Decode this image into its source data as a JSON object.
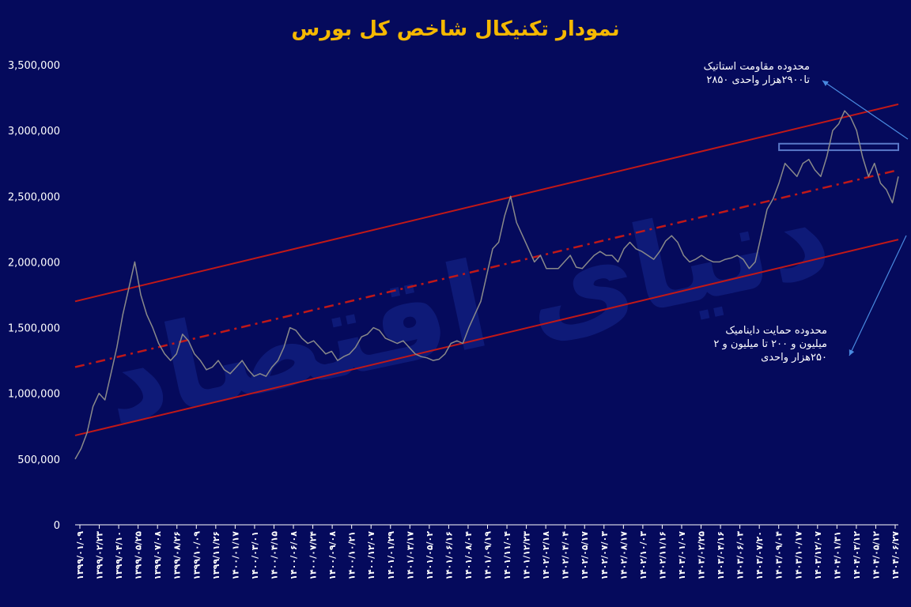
{
  "title": "نمودار تکنیکال شاخص کل بورس",
  "watermark": "دنیای اقتصاد",
  "annotations": {
    "resistance_line1": "محدوده مقاومت استاتیک",
    "resistance_line2": "تا۲۹۰۰هزار واحدی ۲۸۵۰",
    "support_line1": "محدوده حمایت داینامیک",
    "support_line2": "میلیون و ۲۰۰ تا میلیون و ۲",
    "support_line3": "۲۵۰هزار واحدی"
  },
  "colors": {
    "background": "#050a5c",
    "series": "#8a8a8a",
    "channel": "#c01818",
    "title": "#f5b800",
    "annotation_arrow": "#4a8ae0",
    "resistance_box": "#5a78c8"
  },
  "chart_data": {
    "type": "line",
    "title": "نمودار تکنیکال شاخص کل بورس",
    "ylim": [
      0,
      3500000
    ],
    "yticks": [
      0,
      500000,
      1000000,
      1500000,
      2000000,
      2500000,
      3000000,
      3500000
    ],
    "ytick_labels": [
      "0",
      "500,000",
      "1,000,000",
      "1,500,000",
      "2,000,000",
      "2,500,000",
      "3,000,000",
      "3,500,000"
    ],
    "grid": false,
    "x_tick_labels": [
      "۱۳۹۹/۰۱/۰۹",
      "۱۳۹۹/۰۲/۲۳",
      "۱۳۹۹/۰۴/۱۰",
      "۱۳۹۹/۰۵/۲۵",
      "۱۳۹۹/۰۷/۰۸",
      "۱۳۹۹/۰۸/۲۶",
      "۱۳۹۹/۱۰/۰۹",
      "۱۳۹۹/۱۱/۲۶",
      "۱۴۰۰/۰۱/۱۷",
      "۱۴۰۰/۰۳/۰۱",
      "۱۴۰۰/۰۴/۱۵",
      "۱۴۰۰/۰۶/۰۸",
      "۱۴۰۰/۰۷/۲۴",
      "۱۴۰۰/۰۹/۰۸",
      "۱۴۰۰/۱۰/۲۱",
      "۱۴۰۰/۱۲/۰۷",
      "۱۴۰۱/۰۱/۲۹",
      "۱۴۰۱/۰۳/۱۷",
      "۱۴۰۱/۰۵/۰۲",
      "۱۴۰۱/۰۶/۱۶",
      "۱۴۰۱/۰۸/۰۴",
      "۱۴۰۱/۰۹/۱۹",
      "۱۴۰۱/۱۱/۰۴",
      "۱۴۰۱/۱۲/۲۳",
      "۱۴۰۲/۰۲/۱۸",
      "۱۴۰۲/۰۴/۰۴",
      "۱۴۰۲/۰۵/۱۷",
      "۱۴۰۲/۰۷/۰۳",
      "۱۴۰۲/۰۸/۱۷",
      "۱۴۰۲/۱۰/۰۳",
      "۱۴۰۲/۱۱/۱۶",
      "۱۴۰۳/۰۱/۰۷",
      "۱۴۰۳/۰۲/۲۵",
      "۱۴۰۳/۰۴/۱۶",
      "۱۴۰۳/۰۶/۰۳",
      "۱۴۰۳/۰۷/۲۰",
      "۱۴۰۳/۰۹/۰۴",
      "۱۴۰۳/۱۰/۱۷",
      "۱۴۰۳/۱۲/۰۷",
      "۱۴۰۴/۰۱/۳۱",
      "۱۴۰۴/۰۳/۱۲",
      "۱۴۰۴/۰۵/۱۲",
      "۱۴۰۴/۰۶/۲۷"
    ],
    "series": [
      {
        "values": [
          500000,
          580000,
          700000,
          900000,
          1000000,
          950000,
          1150000,
          1350000,
          1600000,
          1800000,
          2000000,
          1750000,
          1600000,
          1500000,
          1380000,
          1300000,
          1250000,
          1300000,
          1450000,
          1400000,
          1300000,
          1250000,
          1180000,
          1200000,
          1250000,
          1180000,
          1150000,
          1200000,
          1250000,
          1180000,
          1130000,
          1150000,
          1130000,
          1200000,
          1250000,
          1350000,
          1500000,
          1480000,
          1420000,
          1380000,
          1400000,
          1350000,
          1300000,
          1320000,
          1250000,
          1280000,
          1300000,
          1350000,
          1430000,
          1450000,
          1500000,
          1480000,
          1420000,
          1400000,
          1380000,
          1400000,
          1350000,
          1300000,
          1280000,
          1270000,
          1250000,
          1260000,
          1300000,
          1380000,
          1400000,
          1380000,
          1500000,
          1600000,
          1700000,
          1900000,
          2100000,
          2150000,
          2350000,
          2500000,
          2300000,
          2200000,
          2100000,
          2000000,
          2050000,
          1950000,
          1950000,
          1950000,
          2000000,
          2050000,
          1960000,
          1950000,
          2000000,
          2050000,
          2080000,
          2050000,
          2050000,
          2000000,
          2100000,
          2150000,
          2100000,
          2080000,
          2050000,
          2020000,
          2080000,
          2160000,
          2200000,
          2150000,
          2050000,
          2000000,
          2020000,
          2050000,
          2020000,
          2000000,
          2000000,
          2020000,
          2030000,
          2050000,
          2020000,
          1950000,
          2000000,
          2200000,
          2400000,
          2480000,
          2600000,
          2750000,
          2700000,
          2650000,
          2750000,
          2780000,
          2700000,
          2650000,
          2800000,
          3000000,
          3050000,
          3150000,
          3100000,
          3000000,
          2800000,
          2650000,
          2750000,
          2600000,
          2550000,
          2450000,
          2650000
        ]
      }
    ],
    "channel": {
      "upper": [
        [
          0,
          1700000
        ],
        [
          138,
          3200000
        ]
      ],
      "middle": [
        [
          0,
          1200000
        ],
        [
          138,
          2700000
        ]
      ],
      "lower": [
        [
          0,
          680000
        ],
        [
          138,
          2170000
        ]
      ]
    },
    "resistance_zone": [
      2850000,
      2900000
    ]
  }
}
